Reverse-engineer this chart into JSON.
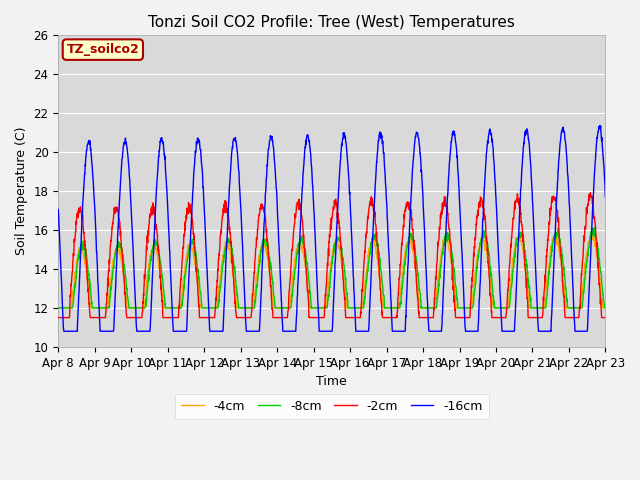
{
  "title": "Tonzi Soil CO2 Profile: Tree (West) Temperatures",
  "xlabel": "Time",
  "ylabel": "Soil Temperature (C)",
  "ylim": [
    10,
    26
  ],
  "x_tick_labels": [
    "Apr 8",
    "Apr 9",
    "Apr 10",
    "Apr 11",
    "Apr 12",
    "Apr 13",
    "Apr 14",
    "Apr 15",
    "Apr 16",
    "Apr 17",
    "Apr 18",
    "Apr 19",
    "Apr 20",
    "Apr 21",
    "Apr 22",
    "Apr 23"
  ],
  "legend_label": "TZ_soilco2",
  "legend_box_color": "#ffffcc",
  "legend_box_edge": "#aa0000",
  "line_labels": [
    "-2cm",
    "-4cm",
    "-8cm",
    "-16cm"
  ],
  "line_colors": [
    "#ff0000",
    "#ffa500",
    "#00cc00",
    "#0000ff"
  ],
  "background_color": "#d9d9d9",
  "grid_color": "#ffffff",
  "title_fontsize": 11,
  "label_fontsize": 9,
  "tick_fontsize": 8.5
}
